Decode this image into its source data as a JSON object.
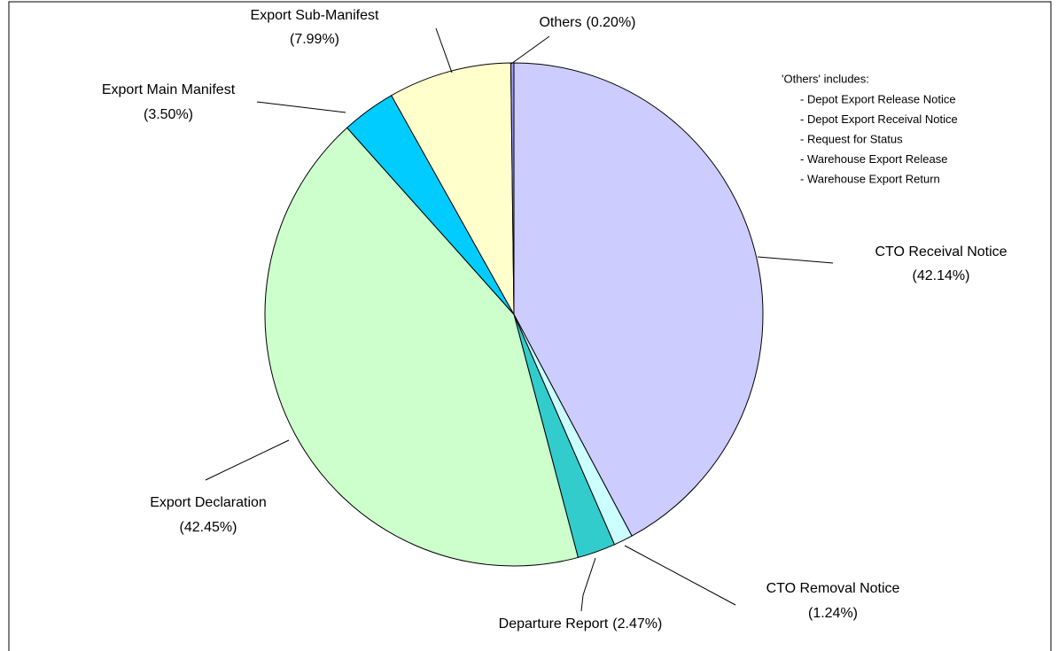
{
  "chart_data": {
    "type": "pie",
    "categories": [
      "CTO Receival Notice",
      "CTO Removal Notice",
      "Departure Report",
      "Export Declaration",
      "Export Main Manifest",
      "Export Sub-Manifest",
      "Others"
    ],
    "values": [
      42.14,
      1.24,
      2.47,
      42.45,
      3.5,
      7.99,
      0.2
    ],
    "value_labels": [
      "(42.14%)",
      "(1.24%)",
      "(2.47%)",
      "(42.45%)",
      "(3.50%)",
      "(7.99%)",
      "(0.20%)"
    ],
    "colors": [
      "#ccccff",
      "#ccffff",
      "#33cccc",
      "#ccffcc",
      "#00ccff",
      "#ffffcc",
      "#9999ff"
    ],
    "annotation": {
      "title": "'Others' includes:",
      "items": [
        "- Depot Export Release Notice",
        "- Depot Export Receival Notice",
        "- Request for Status",
        "- Warehouse Export Release",
        "- Warehouse Export Return"
      ]
    }
  }
}
